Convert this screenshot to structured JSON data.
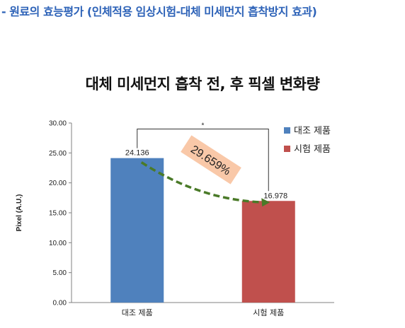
{
  "header": {
    "text": "- 원료의 효능평가 (인체적용 임상시험-대체 미세먼지 흡착방지 효과)"
  },
  "colors": {
    "header": "#2e63b8",
    "control": "#4f81bd",
    "test": "#c0504d",
    "trend_arrow": "#4a7a28",
    "annotation_bg": "#f9c8a8"
  },
  "chart_data": {
    "type": "bar",
    "title": "대체 미세먼지 흡착 전, 후 픽셀 변화량",
    "categories": [
      "대조 제품",
      "시험 제품"
    ],
    "values": [
      24.136,
      16.978
    ],
    "value_labels": [
      "24.136",
      "16.978"
    ],
    "ylabel": "Pixel (A.U.)",
    "xlabel": "",
    "ylim": [
      0,
      30
    ],
    "yticks": [
      "0.00",
      "5.00",
      "10.00",
      "15.00",
      "20.00",
      "25.00",
      "30.00"
    ],
    "grid": false,
    "legend": [
      "대조 제품",
      "시험 제품"
    ],
    "legend_position": "right",
    "significance": "*",
    "change_label": "29.659%"
  }
}
